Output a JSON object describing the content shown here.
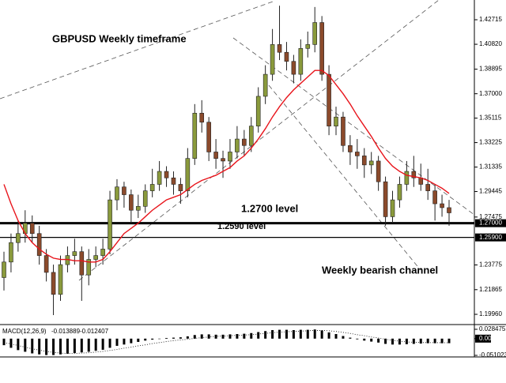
{
  "chart_data": {
    "type": "candlestick",
    "title": "GBPUSD Weekly timeframe",
    "annotation": "Weekly bearish channel",
    "up_color": "#8a9a3c",
    "down_color": "#8b4a2b",
    "ylim": [
      1.1923,
      1.4424
    ],
    "yticks": [
      1.42715,
      {
        "value": 1.4082,
        "label": "1.40820"
      },
      1.38895,
      {
        "value": 1.37,
        "label": "1.37000"
      },
      1.35115,
      1.33225,
      1.31335,
      1.29445,
      1.27475,
      1.23775,
      1.21865,
      {
        "value": 1.1996,
        "label": "1.19960"
      }
    ],
    "hlines": [
      {
        "value": 1.27,
        "label": "1.27000",
        "annotation": "1.2700 level"
      },
      {
        "value": 1.259,
        "label": "1.25900",
        "annotation": "1.2590 level"
      }
    ],
    "open": [
      1.228,
      1.24,
      1.255,
      1.262,
      1.27,
      1.262,
      1.245,
      1.232,
      1.215,
      1.238,
      1.245,
      1.248,
      1.23,
      1.242,
      1.245,
      1.25,
      1.288,
      1.298,
      1.292,
      1.28,
      1.283,
      1.295,
      1.3,
      1.31,
      1.305,
      1.3,
      1.295,
      1.32,
      1.355,
      1.348,
      1.325,
      1.32,
      1.318,
      1.325,
      1.335,
      1.33,
      1.345,
      1.368,
      1.385,
      1.408,
      1.402,
      1.395,
      1.385,
      1.405,
      1.408,
      1.425,
      1.385,
      1.345,
      1.352,
      1.33,
      1.325,
      1.322,
      1.315,
      1.318,
      1.302,
      1.275,
      1.288,
      1.3,
      1.31,
      1.305,
      1.3,
      1.295,
      1.285,
      1.282
    ],
    "high": [
      1.248,
      1.262,
      1.272,
      1.28,
      1.276,
      1.268,
      1.25,
      1.238,
      1.245,
      1.252,
      1.258,
      1.252,
      1.25,
      1.252,
      1.258,
      1.295,
      1.304,
      1.302,
      1.296,
      1.292,
      1.3,
      1.312,
      1.318,
      1.314,
      1.31,
      1.305,
      1.328,
      1.362,
      1.365,
      1.352,
      1.335,
      1.326,
      1.335,
      1.345,
      1.342,
      1.352,
      1.375,
      1.392,
      1.42,
      1.438,
      1.41,
      1.4,
      1.412,
      1.418,
      1.437,
      1.43,
      1.392,
      1.36,
      1.356,
      1.338,
      1.335,
      1.328,
      1.325,
      1.322,
      1.306,
      1.295,
      1.306,
      1.318,
      1.322,
      1.316,
      1.312,
      1.3,
      1.292,
      1.288
    ],
    "low": [
      1.218,
      1.232,
      1.248,
      1.255,
      1.255,
      1.238,
      1.225,
      1.199,
      1.21,
      1.232,
      1.238,
      1.21,
      1.222,
      1.236,
      1.238,
      1.246,
      1.28,
      1.282,
      1.27,
      1.274,
      1.278,
      1.29,
      1.295,
      1.298,
      1.292,
      1.285,
      1.29,
      1.315,
      1.34,
      1.318,
      1.312,
      1.305,
      1.312,
      1.32,
      1.322,
      1.325,
      1.34,
      1.362,
      1.38,
      1.396,
      1.388,
      1.378,
      1.38,
      1.398,
      1.402,
      1.38,
      1.338,
      1.338,
      1.325,
      1.315,
      1.312,
      1.305,
      1.308,
      1.295,
      1.268,
      1.27,
      1.282,
      1.295,
      1.298,
      1.295,
      1.288,
      1.272,
      1.275,
      1.268
    ],
    "close": [
      1.24,
      1.255,
      1.262,
      1.27,
      1.262,
      1.245,
      1.232,
      1.215,
      1.238,
      1.245,
      1.248,
      1.23,
      1.242,
      1.245,
      1.25,
      1.288,
      1.298,
      1.292,
      1.28,
      1.283,
      1.295,
      1.3,
      1.31,
      1.305,
      1.3,
      1.295,
      1.32,
      1.355,
      1.348,
      1.325,
      1.32,
      1.318,
      1.325,
      1.335,
      1.33,
      1.345,
      1.368,
      1.385,
      1.408,
      1.402,
      1.395,
      1.385,
      1.405,
      1.408,
      1.425,
      1.385,
      1.345,
      1.352,
      1.33,
      1.325,
      1.322,
      1.315,
      1.318,
      1.302,
      1.275,
      1.288,
      1.3,
      1.31,
      1.305,
      1.3,
      1.295,
      1.285,
      1.282,
      1.278
    ],
    "moving_average": {
      "color": "#e8141b",
      "values": [
        1.3,
        1.285,
        1.272,
        1.262,
        1.255,
        1.25,
        1.246,
        1.243,
        1.242,
        1.242,
        1.241,
        1.241,
        1.24,
        1.24,
        1.242,
        1.248,
        1.255,
        1.262,
        1.266,
        1.27,
        1.275,
        1.28,
        1.284,
        1.288,
        1.29,
        1.292,
        1.296,
        1.3,
        1.303,
        1.305,
        1.307,
        1.31,
        1.313,
        1.318,
        1.322,
        1.328,
        1.335,
        1.343,
        1.352,
        1.36,
        1.367,
        1.373,
        1.378,
        1.383,
        1.388,
        1.388,
        1.384,
        1.377,
        1.37,
        1.362,
        1.353,
        1.345,
        1.337,
        1.328,
        1.32,
        1.314,
        1.31,
        1.307,
        1.306,
        1.305,
        1.303,
        1.3,
        1.297,
        1.293
      ]
    },
    "macd": {
      "name": "MACD(12,26,9)",
      "last_values": [
        -0.013889,
        -0.012407
      ],
      "y2lim": [
        -0.051023,
        0.028475
      ],
      "y2ticks": [
        0.028475,
        {
          "value": 0,
          "label": "0.00"
        },
        -0.051023
      ],
      "histogram": [
        -0.02,
        -0.028,
        -0.035,
        -0.04,
        -0.045,
        -0.048,
        -0.05,
        -0.05,
        -0.048,
        -0.046,
        -0.044,
        -0.042,
        -0.04,
        -0.037,
        -0.034,
        -0.028,
        -0.022,
        -0.018,
        -0.014,
        -0.01,
        -0.006,
        -0.003,
        0.0,
        0.002,
        0.003,
        0.004,
        0.007,
        0.011,
        0.013,
        0.013,
        0.012,
        0.012,
        0.013,
        0.014,
        0.015,
        0.017,
        0.02,
        0.023,
        0.026,
        0.027,
        0.027,
        0.026,
        0.027,
        0.027,
        0.028,
        0.025,
        0.019,
        0.014,
        0.008,
        0.003,
        -0.002,
        -0.006,
        -0.009,
        -0.012,
        -0.016,
        -0.018,
        -0.018,
        -0.017,
        -0.016,
        -0.015,
        -0.014,
        -0.014,
        -0.014,
        -0.013889
      ],
      "signal": [
        -0.012,
        -0.016,
        -0.021,
        -0.026,
        -0.031,
        -0.035,
        -0.039,
        -0.042,
        -0.044,
        -0.045,
        -0.045,
        -0.044,
        -0.043,
        -0.041,
        -0.039,
        -0.036,
        -0.033,
        -0.029,
        -0.026,
        -0.022,
        -0.019,
        -0.015,
        -0.012,
        -0.009,
        -0.006,
        -0.004,
        -0.002,
        0.001,
        0.003,
        0.005,
        0.007,
        0.008,
        0.009,
        0.01,
        0.011,
        0.012,
        0.014,
        0.016,
        0.018,
        0.02,
        0.021,
        0.022,
        0.023,
        0.024,
        0.025,
        0.025,
        0.024,
        0.022,
        0.019,
        0.016,
        0.012,
        0.009,
        0.005,
        0.002,
        -0.002,
        -0.005,
        -0.008,
        -0.01,
        -0.011,
        -0.012,
        -0.012,
        -0.0123,
        -0.0124,
        -0.012407
      ]
    }
  }
}
